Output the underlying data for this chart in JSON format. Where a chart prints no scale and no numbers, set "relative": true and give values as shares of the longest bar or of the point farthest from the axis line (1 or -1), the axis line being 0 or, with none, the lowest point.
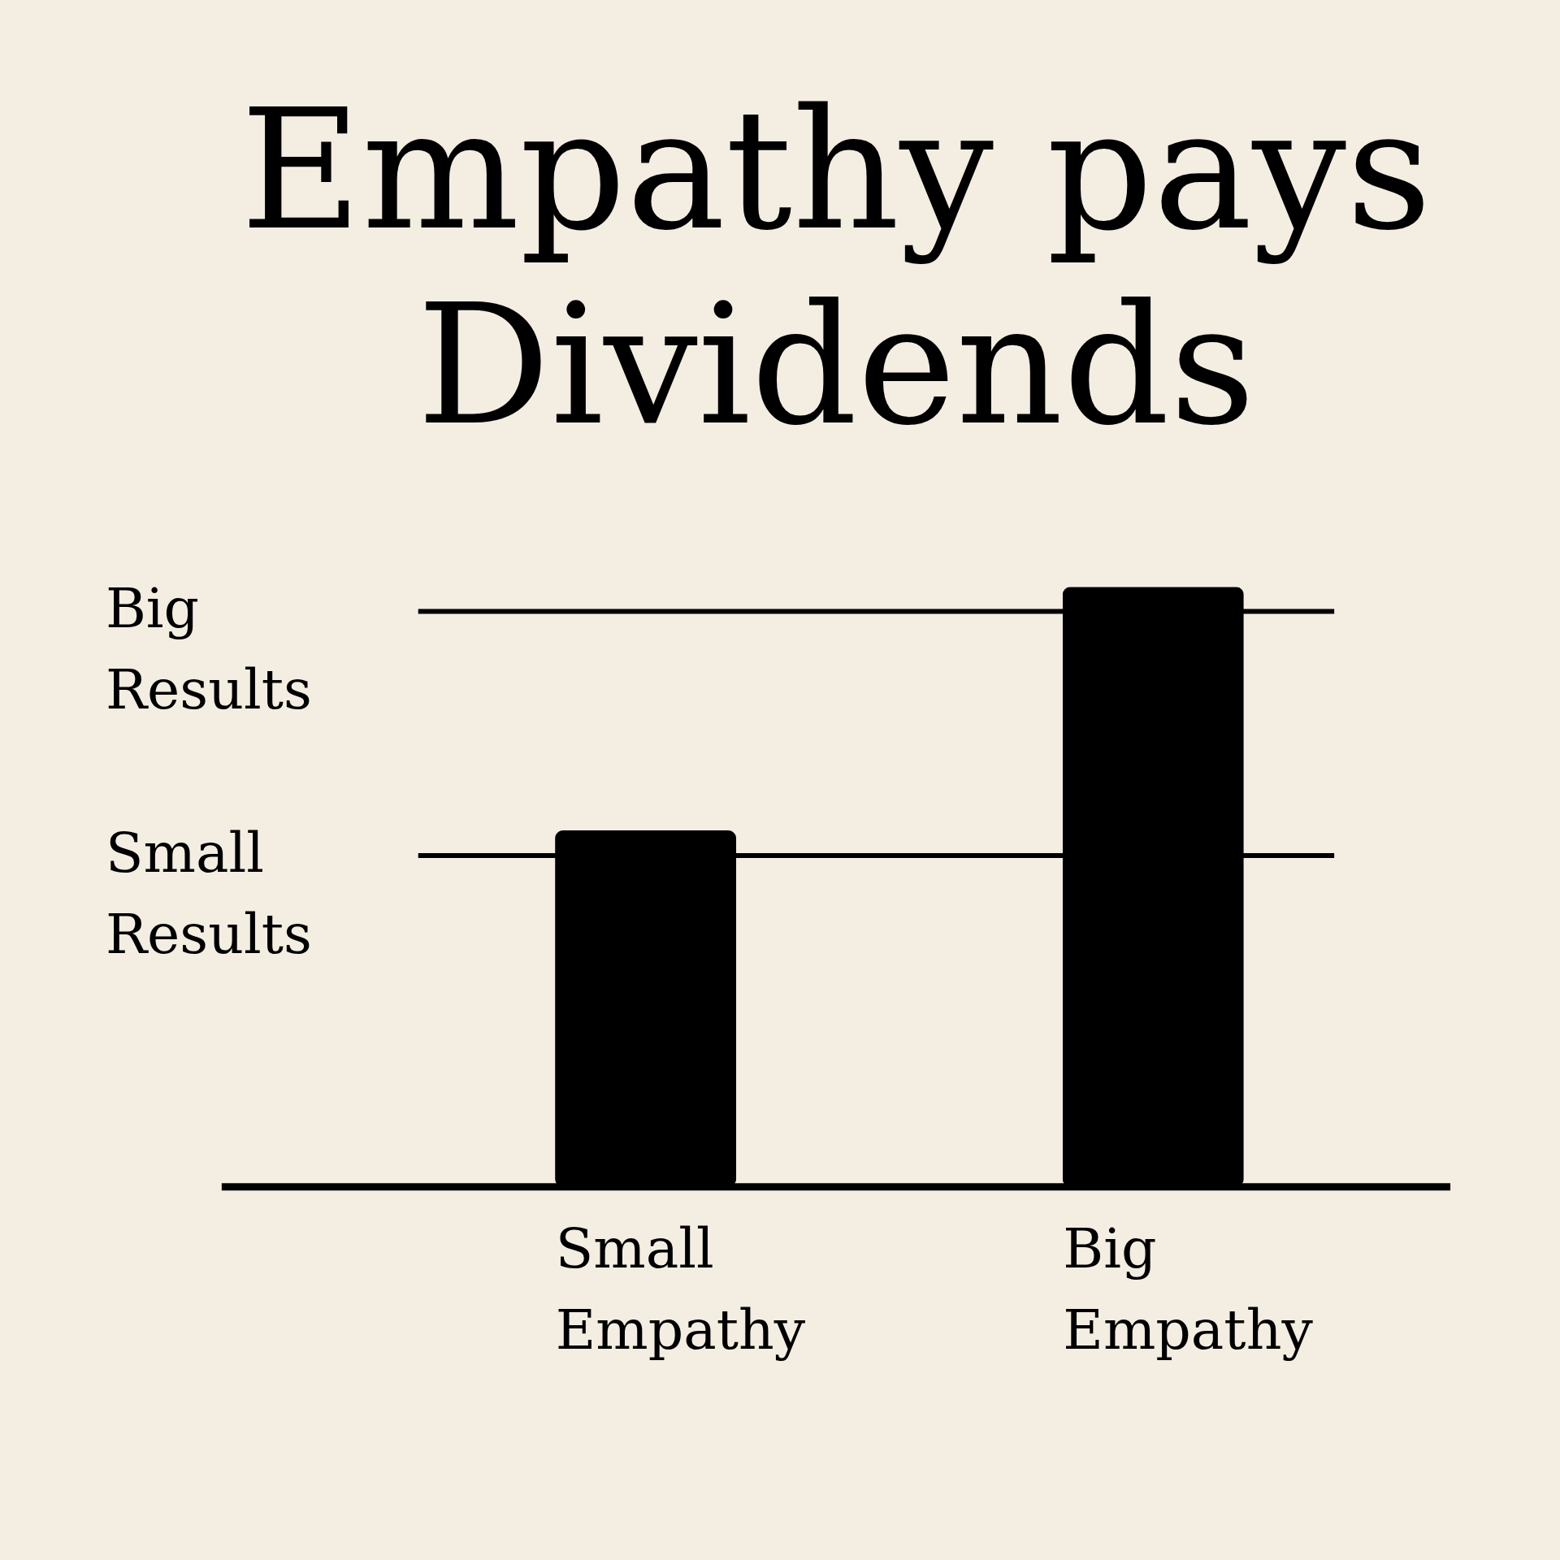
{
  "chart_data": {
    "type": "bar",
    "title": "Empathy pays Dividends",
    "categories": [
      "Small Empathy",
      "Big Empathy"
    ],
    "values": [
      0.594,
      1
    ],
    "color": "#000000",
    "relative": true,
    "ref_lines": [
      {
        "axis": "y",
        "value": 0.552,
        "label": "Small Results",
        "color": "#000000"
      },
      {
        "axis": "y",
        "value": 0.959,
        "label": "Big Results",
        "color": "#000000"
      }
    ],
    "grid": false
  }
}
